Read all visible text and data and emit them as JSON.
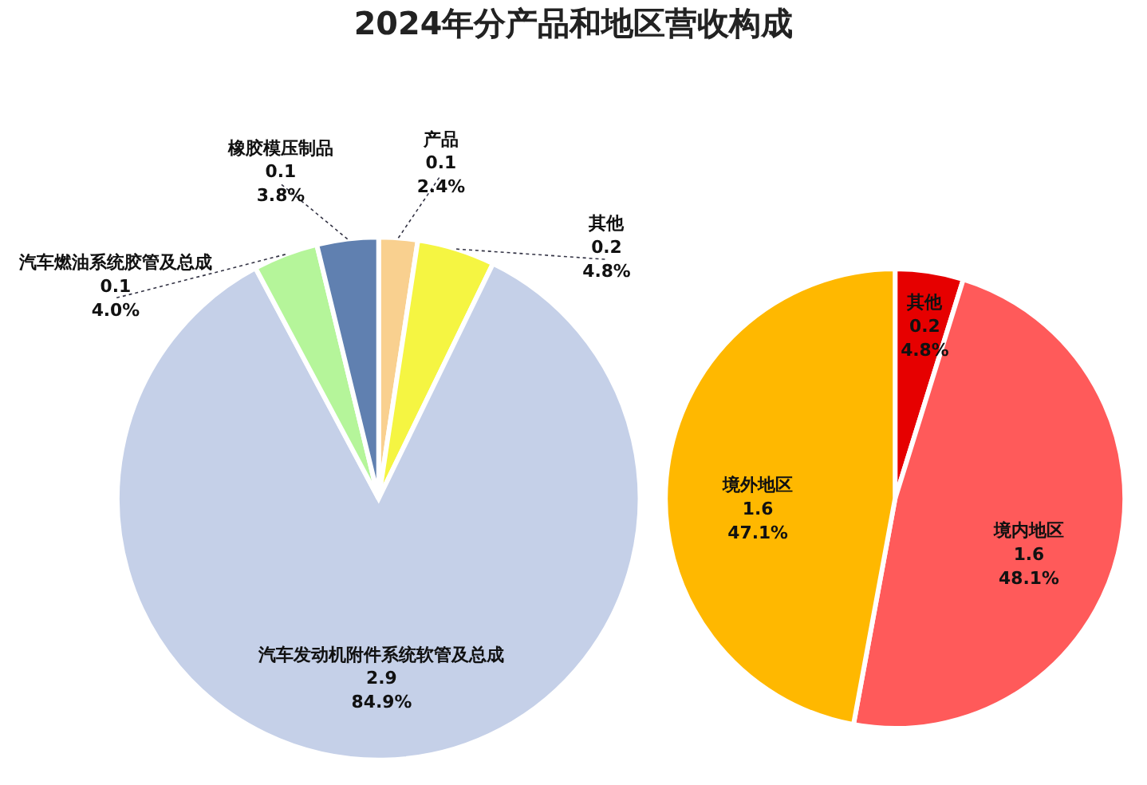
{
  "chart_data": [
    {
      "type": "pie",
      "title": "2024年分产品和地区营收构成",
      "categories": [
        "产品",
        "其他",
        "汽车发动机附件系统软管及总成",
        "汽车燃油系统胶管及总成",
        "橡胶模压制品"
      ],
      "values": [
        2.4,
        4.8,
        84.9,
        4.0,
        3.8
      ],
      "value_labels": [
        "0.1\n2.4%",
        "0.2\n4.8%",
        "2.9\n84.9%",
        "0.1\n4.0%",
        "0.1\n3.8%"
      ],
      "colors": [
        "#f9d08f",
        "#f5f542",
        "#c5d0e8",
        "#b5f59a",
        "#6080b0"
      ]
    },
    {
      "type": "pie",
      "categories": [
        "其他",
        "境内地区",
        "境外地区"
      ],
      "values": [
        4.8,
        48.1,
        47.1
      ],
      "value_labels": [
        "0.2\n4.8%",
        "1.6\n48.1%",
        "1.6\n47.1%"
      ],
      "colors": [
        "#e60000",
        "#ff5a5a",
        "#ffb800"
      ]
    }
  ]
}
